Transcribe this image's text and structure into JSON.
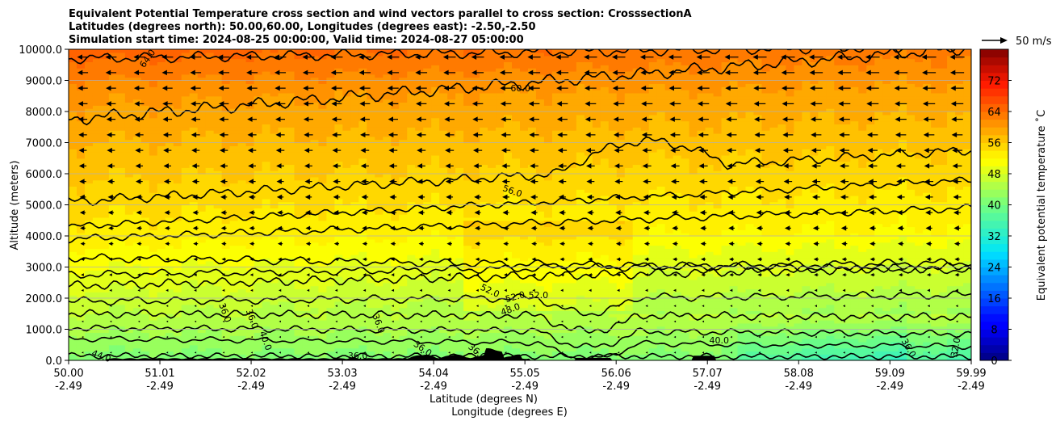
{
  "chart_data": {
    "type": "filled-contour",
    "title_lines": [
      "Equivalent Potential Temperature cross section and wind vectors parallel to cross section: CrosssectionA",
      "Latitudes (degrees north): 50.00,60.00, Longitudes (degrees east): -2.50,-2.50",
      "Simulation start time: 2024-08-25 00:00:00, Valid time: 2024-08-27 05:00:00"
    ],
    "xlabel": "Latitude (degrees N)",
    "xlabel2": "Longitude (degrees E)",
    "ylabel": "Altitude (meters)",
    "x_ticks": [
      {
        "lat": "50.00",
        "lon": "-2.49"
      },
      {
        "lat": "51.01",
        "lon": "-2.49"
      },
      {
        "lat": "52.02",
        "lon": "-2.49"
      },
      {
        "lat": "53.03",
        "lon": "-2.49"
      },
      {
        "lat": "54.04",
        "lon": "-2.49"
      },
      {
        "lat": "55.05",
        "lon": "-2.49"
      },
      {
        "lat": "56.06",
        "lon": "-2.49"
      },
      {
        "lat": "57.07",
        "lon": "-2.49"
      },
      {
        "lat": "58.08",
        "lon": "-2.49"
      },
      {
        "lat": "59.09",
        "lon": "-2.49"
      },
      {
        "lat": "59.99",
        "lon": "-2.49"
      }
    ],
    "xlim": [
      50.0,
      59.99
    ],
    "ylim": [
      0,
      10000
    ],
    "y_ticks": [
      "0.0",
      "1000.0",
      "2000.0",
      "3000.0",
      "4000.0",
      "5000.0",
      "6000.0",
      "7000.0",
      "8000.0",
      "9000.0",
      "10000.0"
    ],
    "grid": "horizontal",
    "colorbar": {
      "label": "Equivalent potential temperature ˚C",
      "range": [
        0,
        80
      ],
      "ticks": [
        "0",
        "8",
        "16",
        "24",
        "32",
        "40",
        "48",
        "56",
        "64",
        "72"
      ]
    },
    "quiver_key": "50 m/s",
    "contour_labels": [
      {
        "text": "64.0",
        "lat": 50.9,
        "alt": 9650,
        "rot": -55
      },
      {
        "text": "60.0",
        "lat": 55.0,
        "alt": 8650,
        "rot": 0
      },
      {
        "text": "56.0",
        "lat": 54.9,
        "alt": 5350,
        "rot": 20
      },
      {
        "text": "52.0",
        "lat": 54.65,
        "alt": 2150,
        "rot": 25
      },
      {
        "text": "52.0",
        "lat": 54.95,
        "alt": 1950,
        "rot": -15
      },
      {
        "text": "52.0",
        "lat": 55.2,
        "alt": 2000,
        "rot": 0
      },
      {
        "text": "48.0",
        "lat": 54.9,
        "alt": 1550,
        "rot": -20
      },
      {
        "text": "36.0",
        "lat": 51.7,
        "alt": 1500,
        "rot": 70
      },
      {
        "text": "36.0",
        "lat": 52.0,
        "alt": 1300,
        "rot": 70
      },
      {
        "text": "40.0",
        "lat": 52.15,
        "alt": 600,
        "rot": 70
      },
      {
        "text": "36.0",
        "lat": 53.4,
        "alt": 1150,
        "rot": 70
      },
      {
        "text": "44.0",
        "lat": 50.35,
        "alt": 50,
        "rot": 20
      },
      {
        "text": "36.0",
        "lat": 53.2,
        "alt": 50,
        "rot": 0
      },
      {
        "text": "36.0",
        "lat": 53.9,
        "alt": 300,
        "rot": 35
      },
      {
        "text": "36.0",
        "lat": 54.5,
        "alt": 200,
        "rot": 40
      },
      {
        "text": "40.0",
        "lat": 57.2,
        "alt": 550,
        "rot": 0
      },
      {
        "text": "36.0",
        "lat": 59.27,
        "alt": 350,
        "rot": 60
      },
      {
        "text": "32.0",
        "lat": 59.85,
        "alt": 400,
        "rot": -80
      }
    ]
  }
}
